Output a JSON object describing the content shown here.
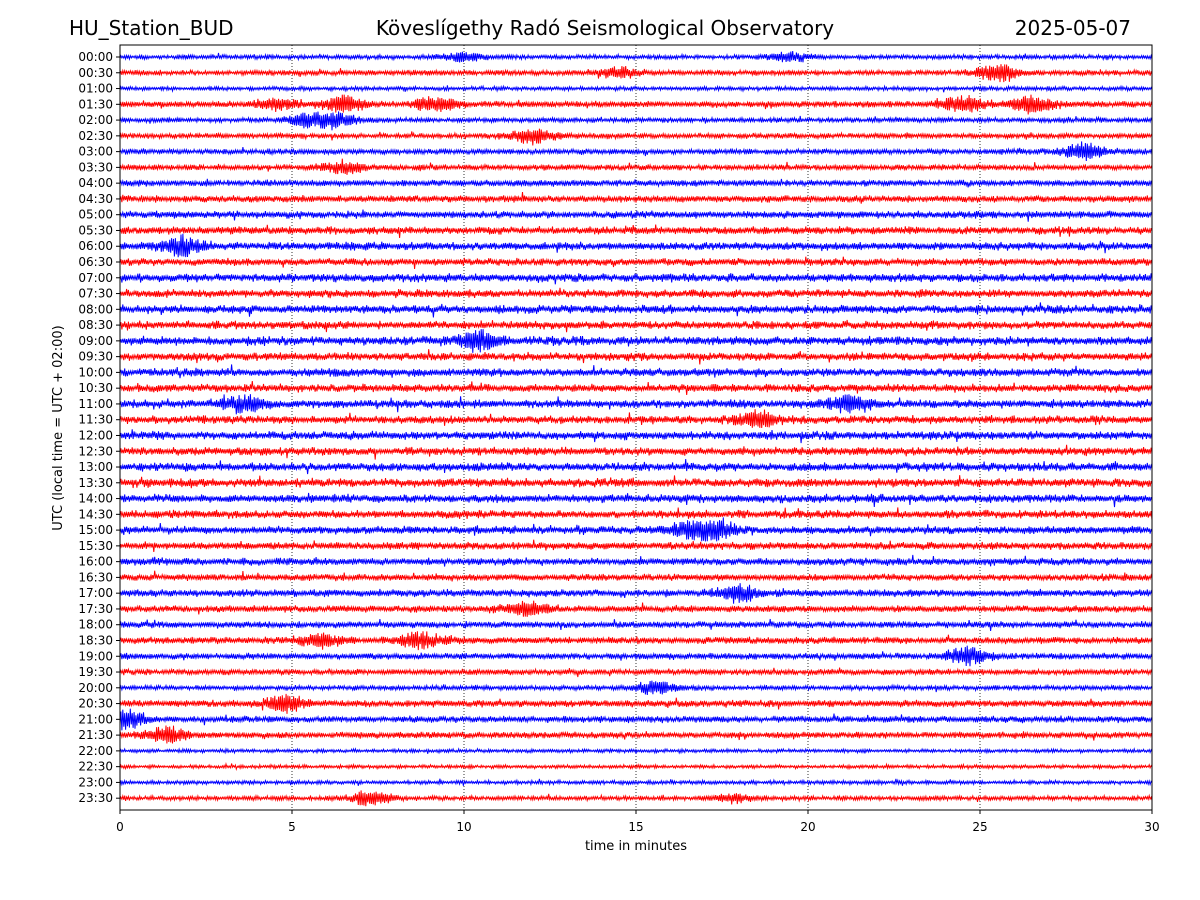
{
  "header": {
    "station": "HU_Station_BUD",
    "observatory": "Köveslígethy Radó Seismological Observatory",
    "date": "2025-05-07"
  },
  "chart_data": {
    "type": "line",
    "title": "Köveslígethy Radó Seismological Observatory",
    "xlabel": "time in minutes",
    "ylabel": "UTC (local time = UTC + 02:00)",
    "xlim": [
      0,
      30
    ],
    "xticks": [
      0,
      5,
      10,
      15,
      20,
      25,
      30
    ],
    "grid": "vertical dotted at x ticks",
    "colors": [
      "#0000ff",
      "#ff0000"
    ],
    "rows": [
      "00:00",
      "00:30",
      "01:00",
      "01:30",
      "02:00",
      "02:30",
      "03:00",
      "03:30",
      "04:00",
      "04:30",
      "05:00",
      "05:30",
      "06:00",
      "06:30",
      "07:00",
      "07:30",
      "08:00",
      "08:30",
      "09:00",
      "09:30",
      "10:00",
      "10:30",
      "11:00",
      "11:30",
      "12:00",
      "12:30",
      "13:00",
      "13:30",
      "14:00",
      "14:30",
      "15:00",
      "15:30",
      "16:00",
      "16:30",
      "17:00",
      "17:30",
      "18:00",
      "18:30",
      "19:00",
      "19:30",
      "20:00",
      "20:30",
      "21:00",
      "21:30",
      "22:00",
      "22:30",
      "23:00",
      "23:30"
    ],
    "row_amplitude": [
      0.28,
      0.32,
      0.25,
      0.38,
      0.3,
      0.32,
      0.34,
      0.35,
      0.38,
      0.42,
      0.45,
      0.48,
      0.5,
      0.46,
      0.52,
      0.5,
      0.52,
      0.5,
      0.55,
      0.5,
      0.52,
      0.5,
      0.52,
      0.5,
      0.52,
      0.5,
      0.52,
      0.55,
      0.52,
      0.5,
      0.48,
      0.46,
      0.45,
      0.42,
      0.45,
      0.42,
      0.4,
      0.42,
      0.38,
      0.35,
      0.3,
      0.42,
      0.4,
      0.38,
      0.22,
      0.22,
      0.24,
      0.28
    ],
    "events": [
      {
        "row": 0,
        "minute": 10.0,
        "amp": 0.5
      },
      {
        "row": 0,
        "minute": 19.5,
        "amp": 0.5
      },
      {
        "row": 1,
        "minute": 14.5,
        "amp": 0.6
      },
      {
        "row": 1,
        "minute": 25.5,
        "amp": 1.0
      },
      {
        "row": 3,
        "minute": 4.5,
        "amp": 0.7
      },
      {
        "row": 3,
        "minute": 6.5,
        "amp": 0.9
      },
      {
        "row": 3,
        "minute": 9.2,
        "amp": 0.9
      },
      {
        "row": 3,
        "minute": 24.5,
        "amp": 0.9
      },
      {
        "row": 3,
        "minute": 26.5,
        "amp": 0.9
      },
      {
        "row": 4,
        "minute": 5.5,
        "amp": 0.8
      },
      {
        "row": 4,
        "minute": 6.3,
        "amp": 0.7
      },
      {
        "row": 5,
        "minute": 12.0,
        "amp": 0.9
      },
      {
        "row": 6,
        "minute": 28.0,
        "amp": 1.0
      },
      {
        "row": 7,
        "minute": 6.5,
        "amp": 0.7
      },
      {
        "row": 12,
        "minute": 1.8,
        "amp": 1.0
      },
      {
        "row": 18,
        "minute": 10.4,
        "amp": 1.1
      },
      {
        "row": 22,
        "minute": 3.6,
        "amp": 0.9
      },
      {
        "row": 22,
        "minute": 21.2,
        "amp": 0.9
      },
      {
        "row": 23,
        "minute": 18.5,
        "amp": 0.9
      },
      {
        "row": 30,
        "minute": 17.3,
        "amp": 1.0
      },
      {
        "row": 30,
        "minute": 16.5,
        "amp": 0.8
      },
      {
        "row": 34,
        "minute": 18.0,
        "amp": 0.9
      },
      {
        "row": 35,
        "minute": 11.8,
        "amp": 0.7
      },
      {
        "row": 37,
        "minute": 8.7,
        "amp": 0.9
      },
      {
        "row": 37,
        "minute": 5.8,
        "amp": 0.8
      },
      {
        "row": 38,
        "minute": 24.6,
        "amp": 1.0
      },
      {
        "row": 40,
        "minute": 15.6,
        "amp": 0.8
      },
      {
        "row": 41,
        "minute": 4.8,
        "amp": 0.9
      },
      {
        "row": 42,
        "minute": 0.1,
        "amp": 1.2
      },
      {
        "row": 43,
        "minute": 1.3,
        "amp": 0.9
      },
      {
        "row": 47,
        "minute": 7.3,
        "amp": 0.9
      },
      {
        "row": 47,
        "minute": 17.8,
        "amp": 0.5
      }
    ]
  }
}
